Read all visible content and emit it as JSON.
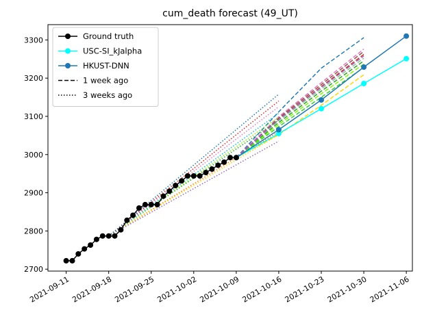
{
  "chart_data": {
    "type": "line",
    "title": "cum_death forecast (49_UT)",
    "xlabel": "",
    "ylabel": "",
    "xlim": [
      "2021-09-08",
      "2021-11-07"
    ],
    "ylim": [
      2695,
      3340
    ],
    "x_ticks": [
      "2021-09-11",
      "2021-09-18",
      "2021-09-25",
      "2021-10-02",
      "2021-10-09",
      "2021-10-16",
      "2021-10-23",
      "2021-10-30",
      "2021-11-06"
    ],
    "y_ticks": [
      2700,
      2800,
      2900,
      3000,
      3100,
      3200,
      3300
    ],
    "grid": false,
    "legend": {
      "placement": "top-left",
      "entries": [
        {
          "label": "Ground truth",
          "color": "#000000",
          "style": "solid",
          "marker": "circle"
        },
        {
          "label": "USC-SI_kJalpha",
          "color": "#00ffff",
          "style": "solid",
          "marker": "circle"
        },
        {
          "label": "HKUST-DNN",
          "color": "#1f77b4",
          "style": "solid",
          "marker": "circle"
        },
        {
          "label": "1 week ago",
          "color": "#000000",
          "style": "dashed",
          "marker": "none"
        },
        {
          "label": "3 weeks ago",
          "color": "#000000",
          "style": "dotted",
          "marker": "none"
        }
      ]
    },
    "series": [
      {
        "name": "Ground truth",
        "color": "#000000",
        "style": "solid",
        "marker": "circle",
        "points": [
          [
            "2021-09-11",
            2722
          ],
          [
            "2021-09-12",
            2722
          ],
          [
            "2021-09-13",
            2740
          ],
          [
            "2021-09-14",
            2753
          ],
          [
            "2021-09-15",
            2763
          ],
          [
            "2021-09-16",
            2778
          ],
          [
            "2021-09-17",
            2787
          ],
          [
            "2021-09-18",
            2787
          ],
          [
            "2021-09-19",
            2787
          ],
          [
            "2021-09-20",
            2803
          ],
          [
            "2021-09-21",
            2828
          ],
          [
            "2021-09-22",
            2841
          ],
          [
            "2021-09-23",
            2860
          ],
          [
            "2021-09-24",
            2869
          ],
          [
            "2021-09-25",
            2869
          ],
          [
            "2021-09-26",
            2869
          ],
          [
            "2021-09-27",
            2891
          ],
          [
            "2021-09-28",
            2904
          ],
          [
            "2021-09-29",
            2919
          ],
          [
            "2021-09-30",
            2931
          ],
          [
            "2021-10-01",
            2944
          ],
          [
            "2021-10-02",
            2944
          ],
          [
            "2021-10-03",
            2944
          ],
          [
            "2021-10-04",
            2953
          ],
          [
            "2021-10-05",
            2962
          ],
          [
            "2021-10-06",
            2972
          ],
          [
            "2021-10-07",
            2980
          ],
          [
            "2021-10-08",
            2992
          ],
          [
            "2021-10-09",
            2992
          ]
        ]
      },
      {
        "name": "USC-SI_kJalpha",
        "color": "#00ffff",
        "style": "solid",
        "marker": "circle",
        "points": [
          [
            "2021-10-09",
            2992
          ],
          [
            "2021-10-16",
            3055
          ],
          [
            "2021-10-23",
            3120
          ],
          [
            "2021-10-30",
            3186
          ],
          [
            "2021-11-06",
            3251
          ]
        ]
      },
      {
        "name": "HKUST-DNN",
        "color": "#1f77b4",
        "style": "solid",
        "marker": "circle",
        "points": [
          [
            "2021-10-09",
            2992
          ],
          [
            "2021-10-16",
            3065
          ],
          [
            "2021-10-23",
            3143
          ],
          [
            "2021-10-30",
            3229
          ],
          [
            "2021-11-06",
            3310
          ]
        ]
      }
    ],
    "forecast_lines": [
      {
        "color": "#1f77b4",
        "style": "dashed",
        "points": [
          [
            "2021-10-09",
            2992
          ],
          [
            "2021-10-16",
            3112
          ],
          [
            "2021-10-23",
            3226
          ],
          [
            "2021-10-30",
            3306
          ]
        ]
      },
      {
        "color": "#ffd700",
        "style": "dashed",
        "points": [
          [
            "2021-10-09",
            2992
          ],
          [
            "2021-10-16",
            3052
          ],
          [
            "2021-10-23",
            3129
          ],
          [
            "2021-10-30",
            3209
          ]
        ]
      },
      {
        "color": "#32cd32",
        "style": "dashed",
        "points": [
          [
            "2021-10-09",
            2992
          ],
          [
            "2021-10-16",
            3073
          ],
          [
            "2021-10-23",
            3150
          ],
          [
            "2021-10-30",
            3228
          ]
        ]
      },
      {
        "color": "#7cfc00",
        "style": "dashed",
        "points": [
          [
            "2021-10-09",
            2992
          ],
          [
            "2021-10-16",
            3079
          ],
          [
            "2021-10-23",
            3159
          ],
          [
            "2021-10-30",
            3237
          ]
        ]
      },
      {
        "color": "#2ca02c",
        "style": "dashed",
        "points": [
          [
            "2021-10-09",
            2992
          ],
          [
            "2021-10-16",
            3084
          ],
          [
            "2021-10-23",
            3166
          ],
          [
            "2021-10-30",
            3245
          ]
        ]
      },
      {
        "color": "#8fbc8f",
        "style": "dashed",
        "points": [
          [
            "2021-10-09",
            2992
          ],
          [
            "2021-10-16",
            3089
          ],
          [
            "2021-10-23",
            3172
          ],
          [
            "2021-10-30",
            3252
          ]
        ]
      },
      {
        "color": "#8c564b",
        "style": "dashed",
        "points": [
          [
            "2021-10-09",
            2992
          ],
          [
            "2021-10-16",
            3096
          ],
          [
            "2021-10-23",
            3183
          ],
          [
            "2021-10-30",
            3270
          ]
        ]
      },
      {
        "color": "#e377c2",
        "style": "dashed",
        "points": [
          [
            "2021-10-09",
            2992
          ],
          [
            "2021-10-16",
            3099
          ],
          [
            "2021-10-23",
            3188
          ],
          [
            "2021-10-30",
            3276
          ]
        ]
      },
      {
        "color": "#d62728",
        "style": "dashed",
        "points": [
          [
            "2021-10-09",
            2992
          ],
          [
            "2021-10-16",
            3093
          ],
          [
            "2021-10-23",
            3178
          ],
          [
            "2021-10-30",
            3262
          ]
        ]
      },
      {
        "color": "#9467bd",
        "style": "dashed",
        "points": [
          [
            "2021-10-09",
            2992
          ],
          [
            "2021-10-16",
            3092
          ],
          [
            "2021-10-23",
            3176
          ],
          [
            "2021-10-30",
            3258
          ]
        ]
      },
      {
        "color": "#ff7f0e",
        "style": "dotted",
        "points": [
          [
            "2021-09-18",
            2787
          ],
          [
            "2021-10-16",
            3060
          ]
        ]
      },
      {
        "color": "#ffd700",
        "style": "dotted",
        "points": [
          [
            "2021-09-18",
            2787
          ],
          [
            "2021-10-16",
            3052
          ]
        ]
      },
      {
        "color": "#9467bd",
        "style": "dotted",
        "points": [
          [
            "2021-09-18",
            2787
          ],
          [
            "2021-10-16",
            3035
          ]
        ]
      },
      {
        "color": "#2ca02c",
        "style": "dotted",
        "points": [
          [
            "2021-09-18",
            2787
          ],
          [
            "2021-10-16",
            3090
          ]
        ]
      },
      {
        "color": "#7cfc00",
        "style": "dotted",
        "points": [
          [
            "2021-09-18",
            2787
          ],
          [
            "2021-10-16",
            3098
          ]
        ]
      },
      {
        "color": "#17becf",
        "style": "dotted",
        "points": [
          [
            "2021-09-18",
            2787
          ],
          [
            "2021-10-16",
            3108
          ]
        ]
      },
      {
        "color": "#e377c2",
        "style": "dotted",
        "points": [
          [
            "2021-09-18",
            2787
          ],
          [
            "2021-10-16",
            3125
          ]
        ]
      },
      {
        "color": "#d62728",
        "style": "dotted",
        "points": [
          [
            "2021-09-18",
            2787
          ],
          [
            "2021-10-16",
            3140
          ]
        ]
      },
      {
        "color": "#1f77b4",
        "style": "dotted",
        "points": [
          [
            "2021-09-18",
            2787
          ],
          [
            "2021-10-16",
            3158
          ]
        ]
      }
    ]
  }
}
